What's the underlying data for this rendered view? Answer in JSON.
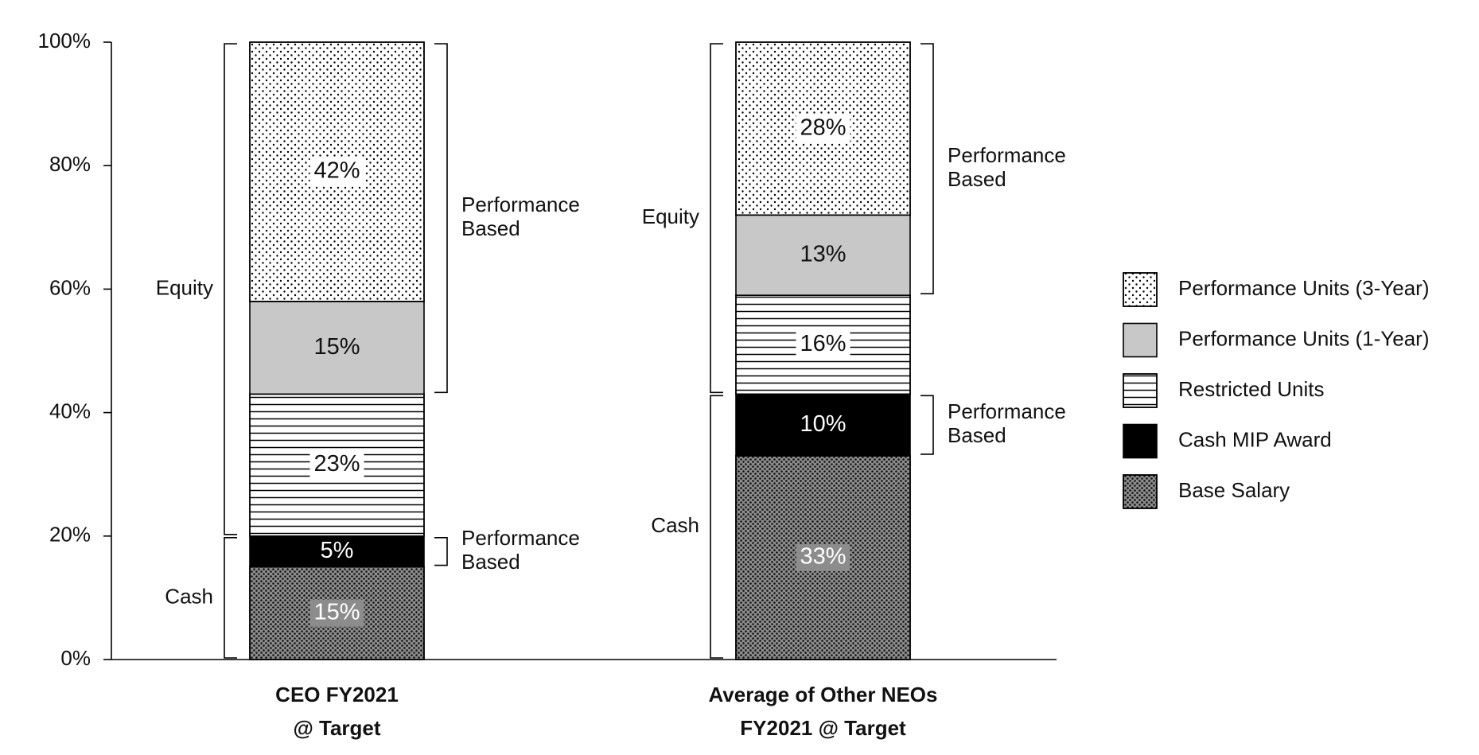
{
  "chart_data": {
    "type": "stacked-bar",
    "categories": [
      [
        "CEO FY2021",
        "@ Target"
      ],
      [
        "Average of Other NEOs",
        "FY2021 @ Target"
      ]
    ],
    "series": [
      {
        "name": "Base Salary",
        "color": "#8c8c8c",
        "pattern": "dense-dots",
        "values": [
          15,
          33
        ],
        "value_labels": [
          "15%",
          "33%"
        ]
      },
      {
        "name": "Cash MIP Award",
        "color": "#000000",
        "values": [
          5,
          10
        ],
        "value_labels": [
          "5%",
          "10%"
        ]
      },
      {
        "name": "Restricted Units",
        "color": "#ffffff",
        "pattern": "hlines",
        "values": [
          23,
          16
        ],
        "value_labels": [
          "23%",
          "16%"
        ]
      },
      {
        "name": "Performance Units (1-Year)",
        "color": "#c8c8c8",
        "values": [
          15,
          13
        ],
        "value_labels": [
          "15%",
          "13%"
        ]
      },
      {
        "name": "Performance Units (3-Year)",
        "color": "#ffffff",
        "pattern": "dots",
        "values": [
          42,
          28
        ],
        "value_labels": [
          "42%",
          "28%"
        ]
      }
    ],
    "ylim": [
      0,
      100
    ],
    "yticks": [
      {
        "value": 0,
        "label": "0%"
      },
      {
        "value": 20,
        "label": "20%"
      },
      {
        "value": 40,
        "label": "40%"
      },
      {
        "value": 60,
        "label": "60%"
      },
      {
        "value": 80,
        "label": "80%"
      },
      {
        "value": 100,
        "label": "100%"
      }
    ],
    "brackets": {
      "equity": "Equity",
      "cash": "Cash",
      "performance": [
        "Performance",
        "Based"
      ]
    },
    "legend": "right"
  }
}
